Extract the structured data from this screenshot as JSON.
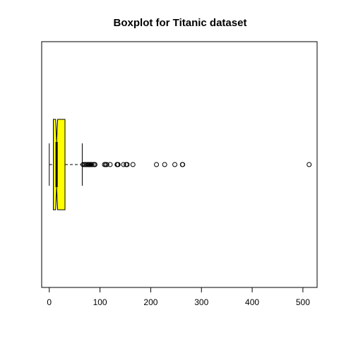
{
  "chart_data": {
    "type": "boxplot",
    "orientation": "horizontal",
    "notched": true,
    "title": "Boxplot for Titanic dataset",
    "xlabel": "",
    "ylabel": "",
    "xlim": [
      -15,
      528
    ],
    "x_ticks": [
      0,
      100,
      200,
      300,
      400,
      500
    ],
    "grid": false,
    "legend": "none",
    "box": {
      "whisker_low": 0,
      "q1": 7.91,
      "median": 14.45,
      "q3": 31,
      "whisker_high": 65,
      "notch_low": 12.5,
      "notch_high": 16.4
    },
    "outliers": [
      66.6,
      69.3,
      71.3,
      73.5,
      76.3,
      77.3,
      78.9,
      79.2,
      80,
      82.2,
      83.2,
      86.5,
      89.1,
      90,
      108.9,
      110.9,
      113.3,
      120,
      133.7,
      134.5,
      135.6,
      146.5,
      151.6,
      153.5,
      164.9,
      211.3,
      227.5,
      247.5,
      262.4,
      263,
      512.3
    ],
    "colors": {
      "box_fill": "#ffff00",
      "stroke": "#000000"
    }
  }
}
